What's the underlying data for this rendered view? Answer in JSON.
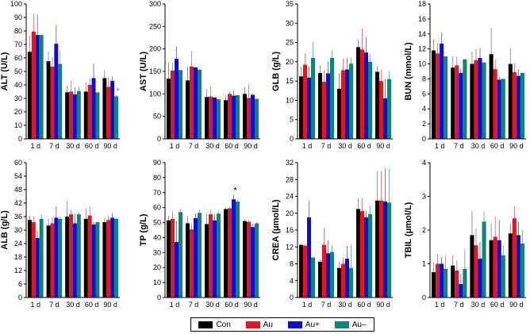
{
  "colors": {
    "Con": "#000000",
    "Au": "#e8141b",
    "Au+": "#0d0bd6",
    "Au–": "#0a8576"
  },
  "legend": [
    "Con",
    "Au",
    "Au+",
    "Au–"
  ],
  "chart_data": [
    {
      "type": "bar",
      "title": "",
      "ylabel": "ALT (U/L)",
      "ylim": [
        0,
        100
      ],
      "yticks": [
        0,
        10,
        20,
        30,
        40,
        50,
        60,
        70,
        80,
        90,
        100
      ],
      "categories": [
        "1 d",
        "7 d",
        "30 d",
        "60 d",
        "90 d"
      ],
      "series": [
        {
          "name": "Con",
          "values": [
            64.5,
            57.5,
            34.5,
            35.0,
            45.0
          ],
          "errors": [
            12,
            7,
            5,
            7,
            6
          ]
        },
        {
          "name": "Au",
          "values": [
            79.5,
            53.5,
            35.0,
            40.0,
            38.5
          ],
          "errors": [
            13,
            7,
            8,
            5,
            7
          ]
        },
        {
          "name": "Au+",
          "values": [
            77.0,
            70.5,
            33.0,
            45.0,
            43.0
          ],
          "errors": [
            15,
            14,
            5,
            11,
            3
          ]
        },
        {
          "name": "Au–",
          "values": [
            77.0,
            55.5,
            35.5,
            34.5,
            31.5
          ],
          "errors": [
            0,
            10,
            3,
            0,
            1
          ]
        }
      ],
      "annotations": [
        {
          "text": "*",
          "category": "90 d",
          "series": "Au–"
        }
      ]
    },
    {
      "type": "bar",
      "title": "",
      "ylabel": "AST (U/L)",
      "ylim": [
        0,
        300
      ],
      "yticks": [
        0,
        50,
        100,
        150,
        200,
        250,
        300
      ],
      "categories": [
        "1 d",
        "7 d",
        "30 d",
        "60 d",
        "90 d"
      ],
      "series": [
        {
          "name": "Con",
          "values": [
            134,
            130,
            93,
            86,
            100
          ],
          "errors": [
            36,
            30,
            18,
            10,
            15
          ]
        },
        {
          "name": "Au",
          "values": [
            152,
            161,
            94,
            100,
            91
          ],
          "errors": [
            17,
            33,
            22,
            5,
            30
          ]
        },
        {
          "name": "Au+",
          "values": [
            178,
            159,
            92,
            96,
            98
          ],
          "errors": [
            27,
            0,
            0,
            12,
            2
          ]
        },
        {
          "name": "Au–",
          "values": [
            153,
            154,
            88,
            97,
            89
          ],
          "errors": [
            0,
            0,
            0,
            0,
            0
          ]
        }
      ]
    },
    {
      "type": "bar",
      "title": "",
      "ylabel": "GLB (g/L)",
      "ylim": [
        0,
        35
      ],
      "yticks": [
        0,
        5,
        10,
        15,
        20,
        25,
        30,
        35
      ],
      "categories": [
        "1 d",
        "7 d",
        "30 d",
        "60 d",
        "90 d"
      ],
      "series": [
        {
          "name": "Con",
          "values": [
            16.2,
            17.1,
            13.0,
            23.8,
            17.4
          ],
          "errors": [
            2.5,
            2,
            4,
            2,
            1.5
          ]
        },
        {
          "name": "Au",
          "values": [
            19.2,
            14.8,
            17.8,
            23.2,
            15.0
          ],
          "errors": [
            3,
            3,
            3,
            5.5,
            3
          ]
        },
        {
          "name": "Au+",
          "values": [
            15.9,
            17.0,
            18.0,
            22.4,
            10.5
          ],
          "errors": [
            3,
            3,
            3,
            4,
            5
          ]
        },
        {
          "name": "Au–",
          "values": [
            21.0,
            21.0,
            19.5,
            20.0,
            15.5
          ],
          "errors": [
            4,
            2,
            1.5,
            2,
            2
          ]
        }
      ]
    },
    {
      "type": "bar",
      "title": "",
      "ylabel": "BUN (mmol/L)",
      "ylim": [
        0,
        18
      ],
      "yticks": [
        0,
        2,
        4,
        6,
        8,
        10,
        12,
        14,
        16,
        18
      ],
      "categories": [
        "1 d",
        "7 d",
        "30 d",
        "60 d",
        "90 d"
      ],
      "series": [
        {
          "name": "Con",
          "values": [
            11.8,
            9.5,
            10.0,
            11.3,
            10.0
          ],
          "errors": [
            1.5,
            1.5,
            1.6,
            3.5,
            2
          ]
        },
        {
          "name": "Au",
          "values": [
            11.4,
            9.8,
            10.5,
            9.3,
            8.9
          ],
          "errors": [
            1.4,
            1.2,
            1.5,
            1.3,
            1.2
          ]
        },
        {
          "name": "Au+",
          "values": [
            12.7,
            8.8,
            10.8,
            7.9,
            8.4
          ],
          "errors": [
            1.5,
            0.6,
            1.3,
            0.4,
            0.9
          ]
        },
        {
          "name": "Au–",
          "values": [
            11.0,
            10.6,
            10.2,
            8.0,
            8.8
          ],
          "errors": [
            0,
            0,
            0,
            0,
            0
          ]
        }
      ]
    },
    {
      "type": "bar",
      "title": "",
      "ylabel": "ALB (g/L)",
      "ylim": [
        0,
        60
      ],
      "yticks": [
        0,
        6,
        12,
        18,
        24,
        30,
        36,
        42,
        48,
        54,
        60
      ],
      "categories": [
        "1 d",
        "7 d",
        "30 d",
        "60 d",
        "90 d"
      ],
      "series": [
        {
          "name": "Con",
          "values": [
            34.5,
            32.0,
            36.0,
            35.0,
            33.5
          ],
          "errors": [
            2,
            3,
            7,
            5,
            2
          ]
        },
        {
          "name": "Au",
          "values": [
            33.5,
            33.0,
            37.0,
            36.5,
            34.5
          ],
          "errors": [
            2.5,
            3,
            2,
            4,
            2
          ]
        },
        {
          "name": "Au+",
          "values": [
            26.5,
            35.5,
            33.0,
            32.5,
            35.5
          ],
          "errors": [
            3,
            5,
            4,
            1,
            2
          ]
        },
        {
          "name": "Au–",
          "values": [
            35.0,
            35.0,
            37.0,
            33.5,
            35.0
          ],
          "errors": [
            2,
            1,
            1,
            0.5,
            0.5
          ]
        }
      ]
    },
    {
      "type": "bar",
      "title": "",
      "ylabel": "TP (g/L)",
      "ylim": [
        0,
        90
      ],
      "yticks": [
        0,
        10,
        20,
        30,
        40,
        50,
        60,
        70,
        80,
        90
      ],
      "categories": [
        "1 d",
        "7 d",
        "30 d",
        "60 d",
        "90 d"
      ],
      "series": [
        {
          "name": "Con",
          "values": [
            51.5,
            49.5,
            49.0,
            59.0,
            51.0
          ],
          "errors": [
            3,
            5,
            7,
            1,
            1
          ]
        },
        {
          "name": "Au",
          "values": [
            52.5,
            45.5,
            55.5,
            59.5,
            50.5
          ],
          "errors": [
            5,
            4,
            3,
            1,
            1
          ]
        },
        {
          "name": "Au+",
          "values": [
            37.0,
            53.0,
            51.5,
            65.5,
            47.0
          ],
          "errors": [
            14,
            3,
            4,
            3,
            2
          ]
        },
        {
          "name": "Au–",
          "values": [
            57.0,
            56.5,
            56.0,
            64.0,
            49.5
          ],
          "errors": [
            2,
            2,
            2,
            1,
            1
          ]
        }
      ],
      "annotations": [
        {
          "text": "*",
          "category": "60 d",
          "series": "Au+"
        }
      ]
    },
    {
      "type": "bar",
      "title": "",
      "ylabel": "CREA (μmol/L)",
      "ylim": [
        0,
        32
      ],
      "yticks": [
        0,
        4,
        8,
        12,
        16,
        20,
        24,
        28,
        32
      ],
      "categories": [
        "1 d",
        "7 d",
        "30 d",
        "60 d",
        "90 d"
      ],
      "series": [
        {
          "name": "Con",
          "values": [
            12.5,
            8.5,
            7.0,
            21.0,
            23.0
          ],
          "errors": [
            0,
            0.5,
            1.5,
            2.5,
            7
          ]
        },
        {
          "name": "Au",
          "values": [
            12.3,
            12.5,
            8.0,
            20.5,
            23.0
          ],
          "errors": [
            0.3,
            4,
            1.5,
            3,
            7
          ]
        },
        {
          "name": "Au+",
          "values": [
            19.0,
            10.5,
            9.2,
            19.0,
            22.8
          ],
          "errors": [
            4,
            3,
            3,
            1.5,
            8
          ]
        },
        {
          "name": "Au–",
          "values": [
            9.5,
            10.8,
            7.0,
            19.8,
            22.5
          ],
          "errors": [
            0,
            1.5,
            5.5,
            1.8,
            8
          ]
        }
      ]
    },
    {
      "type": "bar",
      "title": "",
      "ylabel": "TBIL (μmol/L)",
      "ylim": [
        0,
        4
      ],
      "yticks": [
        0,
        1,
        2,
        3,
        4
      ],
      "categories": [
        "1 d",
        "7 d",
        "30 d",
        "60 d",
        "90 d"
      ],
      "series": [
        {
          "name": "Con",
          "values": [
            0.75,
            0.95,
            1.85,
            1.7,
            1.9
          ],
          "errors": [
            0.3,
            0.3,
            0.7,
            0.5,
            0.3
          ]
        },
        {
          "name": "Au",
          "values": [
            1.0,
            0.8,
            1.55,
            1.8,
            2.35
          ],
          "errors": [
            0.3,
            0.3,
            0.5,
            0.6,
            0.35
          ]
        },
        {
          "name": "Au+",
          "values": [
            1.0,
            0.4,
            1.15,
            1.7,
            1.85
          ],
          "errors": [
            0.2,
            0.3,
            0.5,
            0.6,
            0.4
          ]
        },
        {
          "name": "Au–",
          "values": [
            0.85,
            0.85,
            2.25,
            1.25,
            1.6
          ],
          "errors": [
            0.4,
            0.6,
            0.3,
            0.3,
            0.4
          ]
        }
      ]
    }
  ]
}
